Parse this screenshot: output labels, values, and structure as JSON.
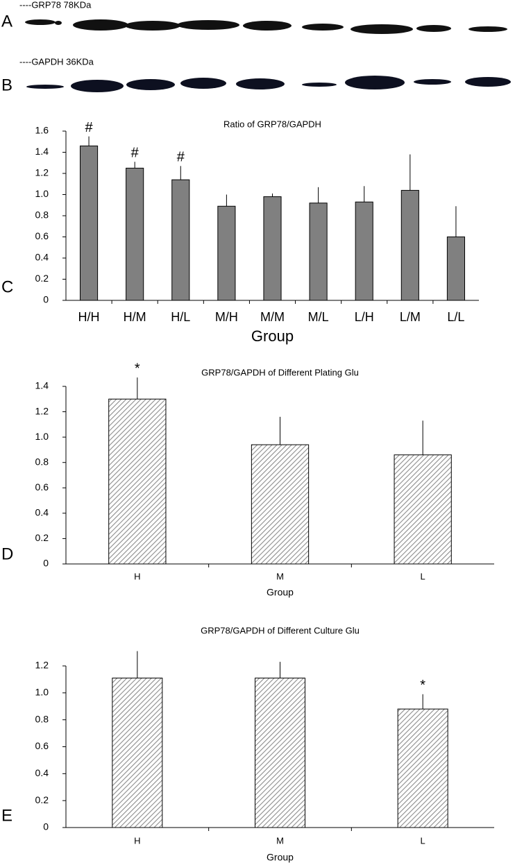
{
  "blots": [
    {
      "panel": "A",
      "label": "----GRP78 78KDa"
    },
    {
      "panel": "B",
      "label": "----GAPDH  36KDa"
    }
  ],
  "chart_data": [
    {
      "type": "bar",
      "panel": "C",
      "title": "Ratio of GRP78/GAPDH",
      "x_label": "Group",
      "categories": [
        "H/H",
        "H/M",
        "H/L",
        "M/H",
        "M/M",
        "M/L",
        "L/H",
        "L/M",
        "L/L"
      ],
      "values": [
        1.46,
        1.25,
        1.14,
        0.89,
        0.98,
        0.92,
        0.93,
        1.04,
        0.6
      ],
      "errors": [
        0.09,
        0.06,
        0.13,
        0.11,
        0.03,
        0.15,
        0.15,
        0.34,
        0.29
      ],
      "annotations": [
        "#",
        "#",
        "#",
        null,
        null,
        null,
        null,
        null,
        null
      ],
      "color": "#808080",
      "hatch": false,
      "ylim": [
        0,
        1.6
      ],
      "yticks": [
        0,
        0.2,
        0.4,
        0.6,
        0.8,
        {
          "value": 1,
          "label": "1.0"
        },
        1.2,
        1.4,
        1.6
      ]
    },
    {
      "type": "bar",
      "panel": "D",
      "title": "GRP78/GAPDH of Different Plating Glu",
      "x_label": "Group",
      "categories": [
        "H",
        "M",
        "L"
      ],
      "values": [
        1.3,
        0.94,
        0.86
      ],
      "errors": [
        0.17,
        0.22,
        0.27
      ],
      "annotations": [
        "*",
        null,
        null
      ],
      "color": "#8c8c8c",
      "hatch": true,
      "ylim": [
        0,
        1.4
      ],
      "yticks": [
        0,
        0.2,
        0.4,
        0.6,
        0.8,
        {
          "value": 1,
          "label": "1.0"
        },
        1.2,
        1.4
      ]
    },
    {
      "type": "bar",
      "panel": "E",
      "title": "GRP78/GAPDH of Different Culture Glu",
      "x_label": "Group",
      "categories": [
        "H",
        "M",
        "L"
      ],
      "values": [
        1.11,
        1.11,
        0.88
      ],
      "errors": [
        0.2,
        0.12,
        0.11
      ],
      "annotations": [
        null,
        null,
        "*"
      ],
      "color": "#8c8c8c",
      "hatch": true,
      "ylim": [
        0,
        1.2
      ],
      "yticks": [
        0,
        0.2,
        0.4,
        0.6,
        0.8,
        {
          "value": 1,
          "label": "1.0"
        },
        1.2
      ]
    }
  ]
}
